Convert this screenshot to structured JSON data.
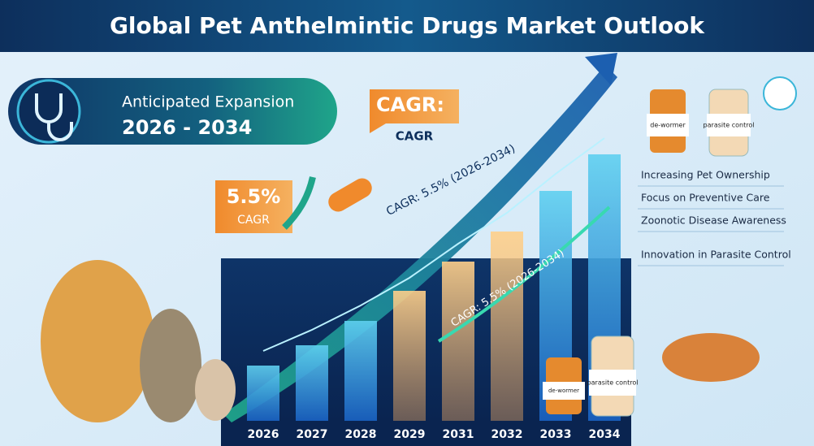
{
  "header": {
    "title": "Global Pet Anthelmintic Drugs Market Outlook"
  },
  "expansion": {
    "label": "Anticipated Expansion",
    "period": "2026 - 2034"
  },
  "cagr_badge_top": {
    "title": "CAGR:",
    "subtitle": "CAGR"
  },
  "cagr_badge_left": {
    "value": "5.5%",
    "label": "CAGR"
  },
  "trend_labels": [
    "CAGR: 5.5% (2026-2034)",
    "CAGR: 5.5% (2026-2034)"
  ],
  "years": [
    "2026",
    "2027",
    "2028",
    "2029",
    "2031",
    "2032",
    "2033",
    "2034"
  ],
  "factors": [
    "Increasing Pet Ownership",
    "Focus on Preventive Care",
    "Zoonotic Disease Awareness",
    "Innovation in Parasite Control"
  ],
  "bottles": [
    "de-wormer",
    "parasite control",
    "de-wormer",
    "parasite control"
  ]
}
